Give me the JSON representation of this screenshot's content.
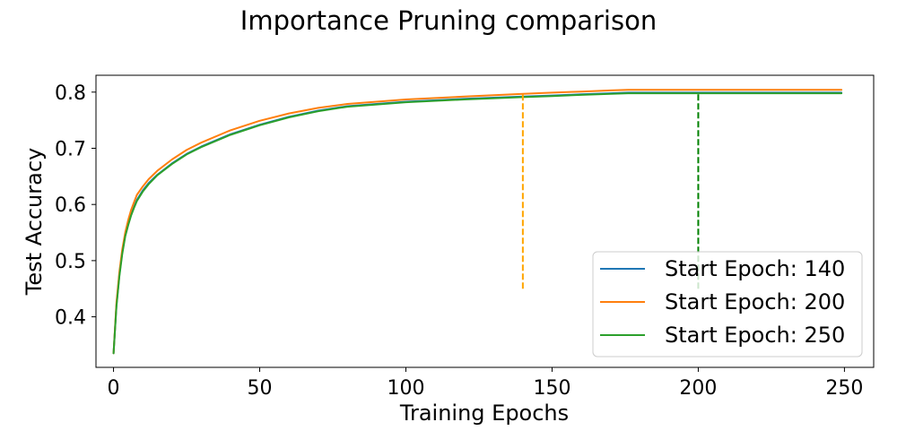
{
  "chart_data": {
    "type": "line",
    "title": "Importance Pruning comparison",
    "xlabel": "Training Epochs",
    "ylabel": "Test Accuracy",
    "xlim": [
      -6,
      260
    ],
    "ylim": [
      0.31,
      0.83
    ],
    "xticks": [
      0,
      50,
      100,
      150,
      200,
      250
    ],
    "yticks": [
      0.4,
      0.5,
      0.6,
      0.7,
      0.8
    ],
    "grid": false,
    "legend_position": "lower-right",
    "series": [
      {
        "name": "Start Epoch: 140",
        "color": "#1f77b4",
        "x": [
          0,
          1,
          2,
          3,
          4,
          5,
          6,
          7,
          8,
          10,
          12,
          15,
          20,
          25,
          30,
          40,
          50,
          60,
          70,
          80,
          100,
          120,
          140,
          150,
          160,
          170,
          176,
          200,
          249
        ],
        "y": [
          0.335,
          0.42,
          0.475,
          0.515,
          0.545,
          0.565,
          0.582,
          0.596,
          0.608,
          0.625,
          0.638,
          0.653,
          0.673,
          0.69,
          0.703,
          0.725,
          0.742,
          0.756,
          0.767,
          0.775,
          0.783,
          0.788,
          0.792,
          0.794,
          0.796,
          0.798,
          0.799,
          0.799,
          0.799
        ]
      },
      {
        "name": "Start Epoch: 200",
        "color": "#ff7f0e",
        "x": [
          0,
          1,
          2,
          3,
          4,
          5,
          6,
          7,
          8,
          10,
          12,
          15,
          20,
          25,
          30,
          40,
          50,
          60,
          70,
          80,
          100,
          120,
          140,
          150,
          160,
          170,
          176,
          200,
          249
        ],
        "y": [
          0.335,
          0.425,
          0.48,
          0.52,
          0.55,
          0.572,
          0.59,
          0.604,
          0.617,
          0.632,
          0.645,
          0.66,
          0.68,
          0.697,
          0.71,
          0.732,
          0.749,
          0.762,
          0.772,
          0.779,
          0.787,
          0.792,
          0.797,
          0.799,
          0.801,
          0.803,
          0.804,
          0.804,
          0.804
        ]
      },
      {
        "name": "Start Epoch: 250",
        "color": "#2ca02c",
        "x": [
          0,
          1,
          2,
          3,
          4,
          5,
          6,
          7,
          8,
          10,
          12,
          15,
          20,
          25,
          30,
          40,
          50,
          60,
          70,
          80,
          100,
          120,
          140,
          150,
          160,
          170,
          176,
          200,
          249
        ],
        "y": [
          0.335,
          0.418,
          0.472,
          0.512,
          0.543,
          0.563,
          0.58,
          0.594,
          0.606,
          0.623,
          0.636,
          0.652,
          0.672,
          0.689,
          0.702,
          0.724,
          0.741,
          0.755,
          0.766,
          0.774,
          0.782,
          0.787,
          0.791,
          0.793,
          0.795,
          0.797,
          0.798,
          0.798,
          0.798
        ]
      }
    ],
    "vlines": [
      {
        "x": 140,
        "ymin": 0.45,
        "ymax": 0.797,
        "color": "#ffa500",
        "style": "dashed"
      },
      {
        "x": 200,
        "ymin": 0.45,
        "ymax": 0.798,
        "color": "#008000",
        "style": "dashed"
      }
    ]
  }
}
